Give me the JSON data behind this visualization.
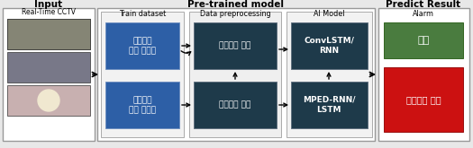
{
  "title_input": "Input",
  "title_pretrained": "Pre-trained model",
  "title_predict": "Predict Result",
  "subtitle_train": "Train dataset",
  "subtitle_preprocess": "Data preprocessing",
  "subtitle_ai": "AI Model",
  "subtitle_alarm": "Alarm",
  "label_cctv": "Real-Time CCTV",
  "box1_text": "이상행동\n영상 데이터",
  "box2_text": "정상행동\n영상 데이터",
  "box3_text": "스켈레톤 추출",
  "box4_text": "객체영역 인식",
  "box5_text": "ConvLSTM/\nRNN",
  "box6_text": "MPED-RNN/\nLSTM",
  "alarm_normal": "정상",
  "alarm_abnormal": "이상행동 발생",
  "blue_box": "#2d5fa6",
  "dark_teal": "#1e3a4a",
  "green_color": "#4a7c3f",
  "red_color": "#cc1111",
  "white": "#ffffff",
  "fig_bg": "#e8e8e8",
  "figsize": [
    5.25,
    1.65
  ],
  "dpi": 100,
  "cctv_colors": [
    "#a0a090",
    "#888898",
    "#c8b8b0"
  ],
  "cctv_img_colors": [
    "#787868",
    "#606070",
    "#d0b8a0"
  ]
}
